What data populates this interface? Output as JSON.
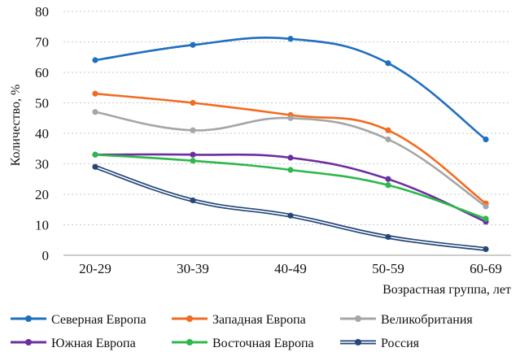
{
  "chart_data": {
    "type": "line",
    "title": "",
    "xlabel": "Возрастная группа, лет",
    "ylabel": "Количество, %",
    "categories": [
      "20-29",
      "30-39",
      "40-49",
      "50-59",
      "60-69"
    ],
    "ylim": [
      0,
      80
    ],
    "yticks": [
      0,
      10,
      20,
      30,
      40,
      50,
      60,
      70,
      80
    ],
    "grid": true,
    "legend_position": "bottom",
    "series": [
      {
        "name": "Северная Европа",
        "values": [
          64,
          69,
          71,
          63,
          38
        ],
        "color": "#1f6fbf",
        "style": "solid"
      },
      {
        "name": "Западная Европа",
        "values": [
          53,
          50,
          46,
          41,
          17
        ],
        "color": "#f26b21",
        "style": "solid"
      },
      {
        "name": "Великобритания",
        "values": [
          47,
          41,
          45,
          38,
          16
        ],
        "color": "#a6a6a6",
        "style": "solid"
      },
      {
        "name": "Южная Европа",
        "values": [
          33,
          33,
          32,
          25,
          11
        ],
        "color": "#6b2fa0",
        "style": "solid"
      },
      {
        "name": "Восточная Европа",
        "values": [
          33,
          31,
          28,
          23,
          12
        ],
        "color": "#2db84a",
        "style": "solid"
      },
      {
        "name": "Россия",
        "values": [
          29,
          18,
          13,
          6,
          2
        ],
        "color": "#24477a",
        "style": "double"
      }
    ]
  }
}
